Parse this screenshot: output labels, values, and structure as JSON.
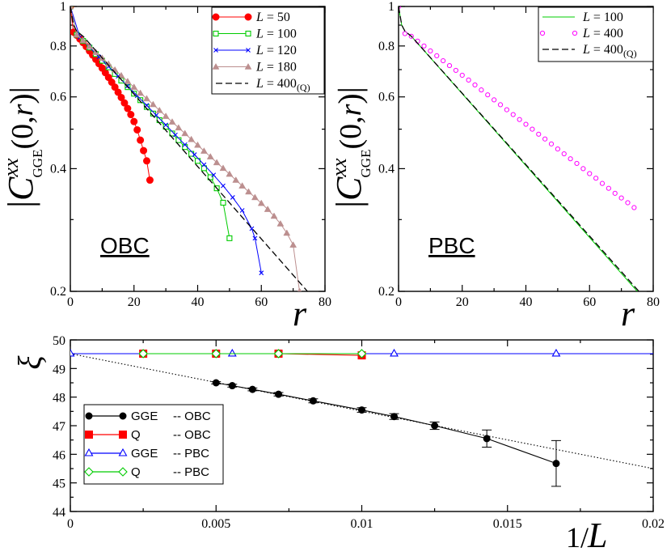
{
  "chart_data": [
    {
      "id": "obc",
      "type": "line",
      "panel_label": "OBC",
      "xlabel": "r",
      "ylabel": "|C^{xx}_{GGE}(0,r)|",
      "ylabel_parts": {
        "abs": "|",
        "C": "C",
        "sup": "xx",
        "sub": "GGE",
        "arg": "(0,",
        "r": "r",
        "close": ")|"
      },
      "xlim": [
        0,
        80
      ],
      "ylim": [
        0.2,
        1.0
      ],
      "yscale": "log",
      "xticks": [
        0,
        20,
        40,
        60,
        80
      ],
      "yticks": [
        0.2,
        0.4,
        0.6,
        0.8,
        1.0
      ],
      "ytick_labels": [
        "0.2",
        "0.4",
        "0.6",
        "0.8",
        "1"
      ],
      "legend_position": "top-right",
      "series": [
        {
          "name": "L = 50",
          "L": "50",
          "suffix": "",
          "color": "#ff0000",
          "marker": "filled-circle",
          "style": "solid",
          "x": [
            0,
            1,
            2,
            3,
            4,
            5,
            6,
            7,
            8,
            9,
            10,
            11,
            12,
            13,
            14,
            15,
            16,
            17,
            18,
            19,
            20,
            21,
            22,
            23,
            24,
            25
          ],
          "y": [
            1.0,
            0.865,
            0.85,
            0.832,
            0.815,
            0.797,
            0.778,
            0.76,
            0.742,
            0.724,
            0.706,
            0.688,
            0.67,
            0.652,
            0.634,
            0.616,
            0.598,
            0.58,
            0.562,
            0.543,
            0.522,
            0.498,
            0.47,
            0.443,
            0.418,
            0.375
          ]
        },
        {
          "name": "L = 100",
          "L": "100",
          "suffix": "",
          "color": "#00cc00",
          "marker": "open-square",
          "style": "solid",
          "x": [
            0,
            2,
            4,
            6,
            8,
            10,
            12,
            14,
            16,
            18,
            20,
            22,
            24,
            26,
            28,
            30,
            32,
            34,
            36,
            38,
            40,
            42,
            44,
            46,
            48,
            50
          ],
          "y": [
            1.0,
            0.852,
            0.823,
            0.793,
            0.764,
            0.736,
            0.709,
            0.683,
            0.658,
            0.634,
            0.611,
            0.589,
            0.567,
            0.546,
            0.526,
            0.507,
            0.488,
            0.47,
            0.452,
            0.435,
            0.418,
            0.401,
            0.381,
            0.358,
            0.33,
            0.27
          ]
        },
        {
          "name": "L = 120",
          "L": "120",
          "suffix": "",
          "color": "#0000ff",
          "marker": "cross",
          "style": "solid",
          "x": [
            0,
            3,
            6,
            9,
            12,
            15,
            18,
            21,
            24,
            27,
            30,
            33,
            36,
            39,
            42,
            45,
            48,
            51,
            54,
            57,
            58,
            60
          ],
          "y": [
            1.0,
            0.84,
            0.795,
            0.752,
            0.712,
            0.674,
            0.638,
            0.604,
            0.572,
            0.541,
            0.512,
            0.484,
            0.458,
            0.433,
            0.409,
            0.386,
            0.363,
            0.34,
            0.316,
            0.285,
            0.27,
            0.222
          ]
        },
        {
          "name": "L = 180",
          "L": "180",
          "suffix": "",
          "color": "#bc8f8f",
          "marker": "filled-triangle",
          "style": "solid",
          "x": [
            0,
            2,
            4,
            6,
            8,
            10,
            12,
            14,
            16,
            18,
            20,
            22,
            24,
            26,
            28,
            30,
            32,
            34,
            36,
            38,
            40,
            42,
            44,
            46,
            48,
            50,
            52,
            54,
            56,
            58,
            60,
            62,
            64,
            66,
            68,
            70,
            72
          ],
          "y": [
            1.0,
            0.852,
            0.825,
            0.798,
            0.772,
            0.747,
            0.723,
            0.699,
            0.677,
            0.655,
            0.634,
            0.613,
            0.594,
            0.575,
            0.556,
            0.538,
            0.521,
            0.504,
            0.488,
            0.472,
            0.457,
            0.442,
            0.428,
            0.414,
            0.401,
            0.388,
            0.375,
            0.363,
            0.351,
            0.34,
            0.329,
            0.318,
            0.306,
            0.293,
            0.278,
            0.26,
            0.2
          ]
        },
        {
          "name": "L = 400(Q)",
          "L": "400",
          "suffix": "(Q)",
          "color": "#000000",
          "marker": "none",
          "style": "dashed",
          "x": [
            0,
            1,
            2,
            4,
            74.5
          ],
          "y": [
            1.0,
            0.9,
            0.87,
            0.845,
            0.2
          ]
        }
      ]
    },
    {
      "id": "pbc",
      "type": "line",
      "panel_label": "PBC",
      "xlabel": "r",
      "ylabel": "|C^{xx}_{GGE}(0,r)|",
      "ylabel_parts": {
        "abs": "|",
        "C": "C",
        "sup": "xx",
        "sub": "GGE",
        "arg": "(0,",
        "r": "r",
        "close": ")|"
      },
      "xlim": [
        0,
        80
      ],
      "ylim": [
        0.2,
        1.0
      ],
      "yscale": "log",
      "xticks": [
        0,
        20,
        40,
        60,
        80
      ],
      "yticks": [
        0.2,
        0.4,
        0.6,
        0.8,
        1.0
      ],
      "ytick_labels": [
        "0.2",
        "0.4",
        "0.6",
        "0.8",
        "1"
      ],
      "legend_position": "top-right",
      "series": [
        {
          "name": "L = 100",
          "L": "100",
          "suffix": "",
          "color": "#00cc00",
          "marker": "none",
          "style": "solid",
          "x": [
            0,
            1,
            2,
            4,
            75
          ],
          "y": [
            1.0,
            0.9,
            0.87,
            0.845,
            0.2
          ]
        },
        {
          "name": "L = 400",
          "L": "400",
          "suffix": "",
          "color": "#ff00ff",
          "marker": "open-circle",
          "style": "none",
          "x": [
            0,
            2,
            4,
            6,
            8,
            10,
            12,
            14,
            16,
            18,
            20,
            22,
            24,
            26,
            28,
            30,
            32,
            34,
            36,
            38,
            40,
            42,
            44,
            46,
            48,
            50,
            52,
            54,
            56,
            58,
            60,
            62,
            64,
            66,
            68,
            70,
            72,
            74
          ],
          "y": [
            1.0,
            0.858,
            0.845,
            0.822,
            0.8,
            0.778,
            0.757,
            0.736,
            0.716,
            0.697,
            0.678,
            0.66,
            0.642,
            0.624,
            0.607,
            0.59,
            0.574,
            0.558,
            0.543,
            0.528,
            0.514,
            0.5,
            0.486,
            0.473,
            0.46,
            0.447,
            0.435,
            0.423,
            0.412,
            0.4,
            0.389,
            0.379,
            0.368,
            0.358,
            0.348,
            0.339,
            0.33,
            0.321
          ]
        },
        {
          "name": "L = 400(Q)",
          "L": "400",
          "suffix": "(Q)",
          "color": "#000000",
          "marker": "none",
          "style": "dashed",
          "x": [
            0,
            1,
            2,
            4,
            75.5
          ],
          "y": [
            1.0,
            0.9,
            0.87,
            0.845,
            0.2
          ]
        }
      ]
    },
    {
      "id": "xi",
      "type": "line",
      "xlabel": "1/L",
      "ylabel": "ξ",
      "xlim": [
        0,
        0.02
      ],
      "ylim": [
        44,
        50
      ],
      "xticks": [
        0,
        0.005,
        0.01,
        0.015,
        0.02
      ],
      "xtick_labels": [
        "0",
        "0.005",
        "0.01",
        "0.015",
        "0.02"
      ],
      "yticks": [
        44,
        45,
        46,
        47,
        48,
        49,
        50
      ],
      "legend_position": "bottom-left",
      "series": [
        {
          "name": "GGE",
          "bc": "-- OBC",
          "color": "#000000",
          "marker": "filled-circle",
          "x": [
            0.005,
            0.005556,
            0.00625,
            0.007143,
            0.008333,
            0.01,
            0.01111,
            0.0125,
            0.01429,
            0.01667
          ],
          "y": [
            48.5,
            48.4,
            48.27,
            48.1,
            47.87,
            47.55,
            47.32,
            47.0,
            46.55,
            45.68
          ],
          "err": [
            0.04,
            0.05,
            0.05,
            0.06,
            0.07,
            0.08,
            0.1,
            0.13,
            0.3,
            0.8
          ]
        },
        {
          "name": "Q",
          "bc": "-- OBC",
          "color": "#ff0000",
          "marker": "filled-square",
          "x": [
            0.0025,
            0.005,
            0.007143,
            0.01
          ],
          "y": [
            49.52,
            49.52,
            49.52,
            49.46
          ]
        },
        {
          "name": "GGE",
          "bc": "-- PBC",
          "color": "#0000ff",
          "marker": "open-triangle",
          "x": [
            0,
            0.005556,
            0.01111,
            0.01667,
            0.02
          ],
          "y": [
            49.52,
            49.52,
            49.52,
            49.52,
            49.52
          ],
          "marker_x": [
            0,
            0.005556,
            0.01111,
            0.01667
          ]
        },
        {
          "name": "Q",
          "bc": "-- PBC",
          "color": "#00cc00",
          "marker": "open-diamond",
          "x": [
            0.0025,
            0.005,
            0.007143,
            0.01
          ],
          "y": [
            49.52,
            49.52,
            49.52,
            49.52
          ]
        },
        {
          "name": "fit",
          "color": "#000000",
          "marker": "none",
          "style": "dotted",
          "legend": false,
          "x": [
            0,
            0.02
          ],
          "y": [
            49.52,
            45.5
          ]
        }
      ]
    }
  ]
}
